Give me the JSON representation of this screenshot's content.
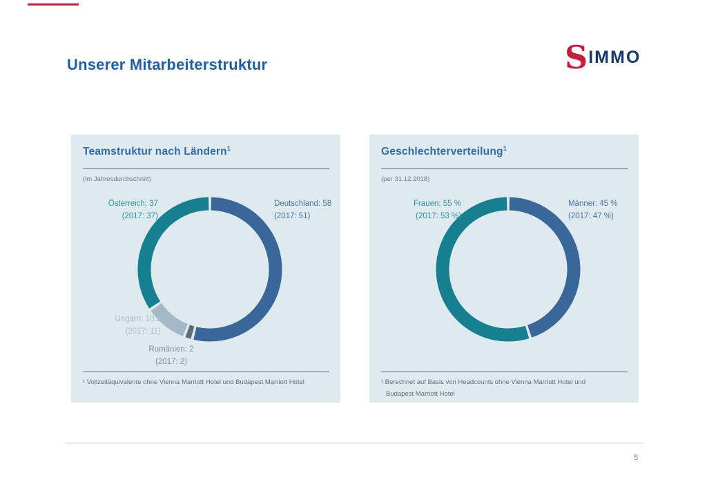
{
  "slide": {
    "title": "Unserer Mitarbeiterstruktur",
    "page_number": "5",
    "logo": {
      "symbol": "S",
      "name": "IMMO",
      "symbol_color": "#c5203b",
      "name_color": "#16386b"
    },
    "accent_red": "#c5203b",
    "title_color": "#1d5ea6",
    "panel_background": "#dfeaee"
  },
  "chart_data": [
    {
      "type": "donut",
      "title": "Teamstruktur nach Ländern",
      "title_sup": "1",
      "subtitle": "(im Jahresdurchschnitt)",
      "legend_position": "around",
      "segments": [
        {
          "name": "Deutschland",
          "value": 58,
          "label_line1": "Deutschland: 58",
          "label_line2": "(2017: 51)",
          "color": "#3a679a",
          "label_color": "#4a74a5"
        },
        {
          "name": "Rumänien",
          "value": 2,
          "label_line1": "Rumänien: 2",
          "label_line2": "(2017: 2)",
          "color": "#5f6c75",
          "label_color": "#7e909c"
        },
        {
          "name": "Ungarn",
          "value": 10.5,
          "label_line1": "Ungarn: 10,5",
          "label_line2": "(2017: 11)",
          "color": "#a4b8c5",
          "label_color": "#a9bdca"
        },
        {
          "name": "Österreich",
          "value": 37,
          "label_line1": "Österreich: 37",
          "label_line2": "(2017: 37)",
          "color": "#168091",
          "label_color": "#2d93a4"
        }
      ],
      "footnote_lines": [
        "¹ Vollzeitäquivalente ohne Vienna Marriott Hotel und Budapest Marriott Hotel"
      ]
    },
    {
      "type": "donut",
      "title": "Geschlechterverteilung",
      "title_sup": "1",
      "subtitle": "(per 31.12.2018)",
      "legend_position": "around",
      "segments": [
        {
          "name": "Männer",
          "value": 45,
          "label_line1": "Männer: 45 %",
          "label_line2": "(2017: 47 %)",
          "color": "#3a679a",
          "label_color": "#4a74a5"
        },
        {
          "name": "Frauen",
          "value": 55,
          "label_line1": "Frauen: 55 %",
          "label_line2": "(2017: 53 %)",
          "color": "#168091",
          "label_color": "#2d93a4"
        }
      ],
      "footnote_lines": [
        "¹ Berechnet auf Basis von Headcounts ohne Vienna Marriott Hotel und",
        "Budapest Marriott Hotel"
      ]
    }
  ]
}
